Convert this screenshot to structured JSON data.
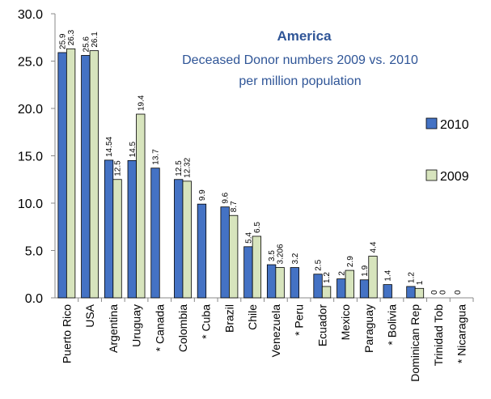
{
  "chart_data": {
    "type": "bar",
    "title": "America",
    "subtitle_lines": [
      "Deceased Donor numbers 2009 vs. 2010",
      "per million population"
    ],
    "xlabel": "",
    "ylabel": "",
    "ylim": [
      0,
      30
    ],
    "yticks": [
      "0.0",
      "5.0",
      "10.0",
      "15.0",
      "20.0",
      "25.0",
      "30.0"
    ],
    "grid": false,
    "legend_position": "right",
    "categories": [
      "Puerto Rico",
      "USA",
      "Argentina",
      "Uruguay",
      "* Canada",
      "Colombia",
      "* Cuba",
      "Brazil",
      "Chile",
      "Venezuela",
      "* Peru",
      "Ecuador",
      "Mexico",
      "Paraguay",
      "* Bolivia",
      "Dominican Rep",
      "Trinidad Tob",
      "* Nicaragua"
    ],
    "series": [
      {
        "name": "2010",
        "color": "#4472c4",
        "values": [
          25.9,
          25.6,
          14.54,
          14.5,
          13.7,
          12.5,
          9.9,
          9.6,
          5.4,
          3.5,
          3.2,
          2.5,
          2.0,
          1.9,
          1.4,
          1.2,
          0,
          0
        ],
        "labels": [
          "25.9",
          "25.6",
          "14.54",
          "14.5",
          "13.7",
          "12.5",
          "9.9",
          "9.6",
          "5.4",
          "3.5",
          "3.2",
          "2.5",
          "2",
          "1.9",
          "1.4",
          "1.2",
          "0",
          "0"
        ]
      },
      {
        "name": "2009",
        "color": "#d7e4bd",
        "values": [
          26.3,
          26.1,
          12.5,
          19.4,
          null,
          12.32,
          null,
          8.7,
          6.5,
          3.206,
          null,
          1.2,
          2.9,
          4.4,
          null,
          1.0,
          0,
          null
        ],
        "labels": [
          "26.3",
          "26.1",
          "12.5",
          "19.4",
          "",
          "12.32",
          "",
          "8.7",
          "6.5",
          "3.206",
          "",
          "1.2",
          "2.9",
          "4.4",
          "",
          "1",
          "0",
          ""
        ]
      }
    ]
  }
}
